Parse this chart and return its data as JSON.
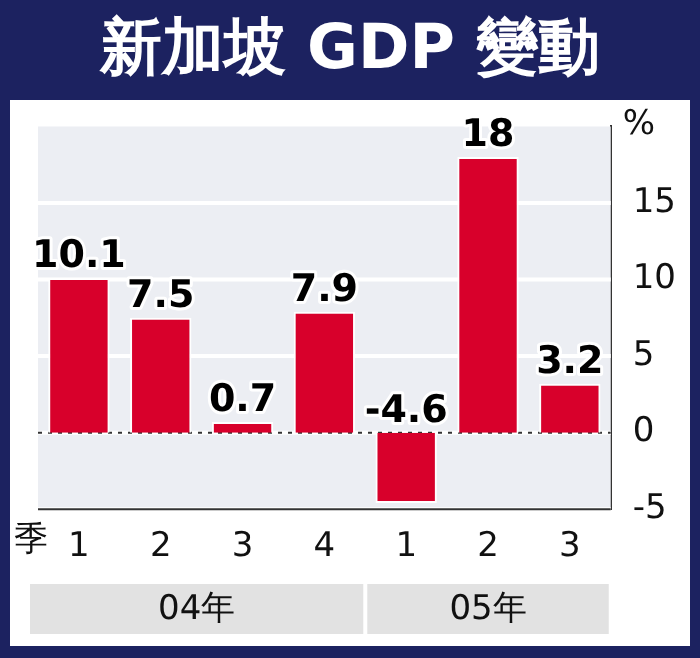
{
  "chart_data": {
    "type": "bar",
    "title": "新加坡 GDP 變動",
    "ylabel": "%",
    "xlabel": "季",
    "categories": [
      "1",
      "2",
      "3",
      "4",
      "1",
      "2",
      "3"
    ],
    "values": [
      10.1,
      7.5,
      0.7,
      7.9,
      -4.6,
      18,
      3.2
    ],
    "color": "#d8002b",
    "ylim": [
      -5,
      20
    ],
    "yticks": [
      -5,
      0,
      5,
      10,
      15
    ],
    "grid": "y",
    "data_labels": true,
    "legend": false,
    "ref_lines": [
      {
        "axis": "y",
        "value": 0,
        "line_style": "dotted",
        "color": "#333333"
      }
    ],
    "annotations": [
      "04年",
      "05年"
    ]
  }
}
